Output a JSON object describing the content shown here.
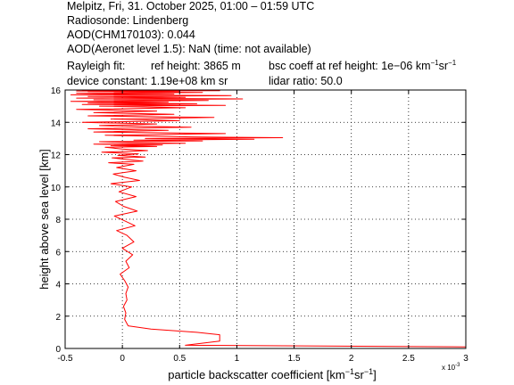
{
  "header": {
    "line1": "Melpitz, Fri, 31. October 2025, 01:00 – 01:59 UTC",
    "line2": "Radiosonde: Lindenberg",
    "line3": "AOD(CHM170103): 0.044",
    "line4": "AOD(Aeronet level 1.5): NaN   (time: not available)",
    "rayleigh_label": "Rayleigh fit:",
    "ref_height": "ref height: 3865 m",
    "bsc_coeff_prefix": "bsc coeff at ref height: 1e−06 km",
    "device_constant": "device constant: 1.19e+08 km sr",
    "lidar_ratio": "lidar ratio: 50.0"
  },
  "chart_data": {
    "type": "line",
    "title": "",
    "xlabel_prefix": "particle backscatter coefficient [km",
    "xlabel_mid": "sr",
    "xlabel_suffix": "]",
    "ylabel": "height above sea level [km]",
    "x_multiplier_label": "x 10",
    "x_multiplier_exp": "-3",
    "xlim": [
      -0.5,
      3.0
    ],
    "ylim": [
      0,
      16
    ],
    "xticks": [
      -0.5,
      0,
      0.5,
      1,
      1.5,
      2,
      2.5,
      3
    ],
    "xtick_labels": [
      "-0.5",
      "0",
      "0.5",
      "1",
      "1.5",
      "2",
      "2.5",
      "3"
    ],
    "yticks": [
      0,
      2,
      4,
      6,
      8,
      10,
      12,
      14,
      16
    ],
    "ytick_labels": [
      "0",
      "2",
      "4",
      "6",
      "8",
      "10",
      "12",
      "14",
      "16"
    ],
    "grid": true,
    "series_color": "#ff0000",
    "series": [
      {
        "name": "",
        "x": [
          3.0,
          0.55,
          0.85,
          0.85,
          0.65,
          0.25,
          0.05,
          0.02,
          0.03,
          0.01,
          0.04,
          0.03,
          0.05,
          0.02,
          -0.02,
          0.06,
          0.03,
          0.09,
          0.0,
          0.1,
          0.04,
          -0.05,
          0.11,
          0.02,
          -0.07,
          0.13,
          0.01,
          -0.06,
          0.12,
          -0.03,
          0.08,
          -0.1,
          0.15,
          0.02,
          -0.08,
          0.12,
          -0.05,
          0.1,
          -0.12,
          0.18,
          0.03,
          -0.09,
          0.2,
          -0.04,
          0.14,
          -0.18,
          0.22,
          0.0,
          -0.15,
          0.3,
          -0.1,
          0.35,
          -0.25,
          0.55,
          0.05,
          -0.2,
          0.7,
          0.1,
          1.15,
          0.2,
          1.4,
          0.6,
          -0.15,
          0.9,
          -0.25,
          0.4,
          -0.3,
          0.6,
          -0.2,
          0.3,
          -0.35,
          0.5,
          -0.1,
          0.8,
          -0.3,
          0.45,
          -0.25,
          0.3,
          -0.4,
          0.55,
          -0.2,
          0.9,
          -0.35,
          0.65,
          -0.3,
          0.4,
          -0.45,
          0.75,
          -0.25,
          1.05,
          -0.4,
          0.55,
          -0.3,
          0.95,
          -0.45,
          0.45,
          -0.4,
          0.7,
          -0.3,
          0.5,
          -0.4,
          0.85,
          -0.35,
          0.65
        ],
        "y": [
          0.1,
          0.2,
          0.45,
          0.85,
          1.0,
          1.2,
          1.4,
          1.8,
          2.2,
          2.6,
          3.0,
          3.4,
          3.8,
          4.2,
          4.6,
          5.0,
          5.4,
          5.8,
          6.2,
          6.6,
          7.0,
          7.3,
          7.6,
          7.9,
          8.2,
          8.5,
          8.8,
          9.1,
          9.4,
          9.7,
          10.0,
          10.2,
          10.4,
          10.6,
          10.8,
          11.0,
          11.2,
          11.4,
          11.5,
          11.6,
          11.7,
          11.8,
          11.85,
          11.95,
          12.05,
          12.15,
          12.25,
          12.35,
          12.45,
          12.5,
          12.55,
          12.6,
          12.65,
          12.7,
          12.75,
          12.8,
          12.85,
          12.9,
          12.95,
          13.0,
          13.05,
          13.1,
          13.2,
          13.3,
          13.4,
          13.5,
          13.6,
          13.7,
          13.8,
          13.9,
          14.0,
          14.1,
          14.2,
          14.3,
          14.4,
          14.5,
          14.6,
          14.7,
          14.8,
          14.9,
          15.0,
          15.05,
          15.1,
          15.15,
          15.2,
          15.25,
          15.3,
          15.35,
          15.4,
          15.45,
          15.5,
          15.55,
          15.6,
          15.65,
          15.7,
          15.75,
          15.8,
          15.85,
          15.9,
          15.92,
          15.94,
          15.96,
          15.98,
          16.0
        ]
      }
    ]
  }
}
